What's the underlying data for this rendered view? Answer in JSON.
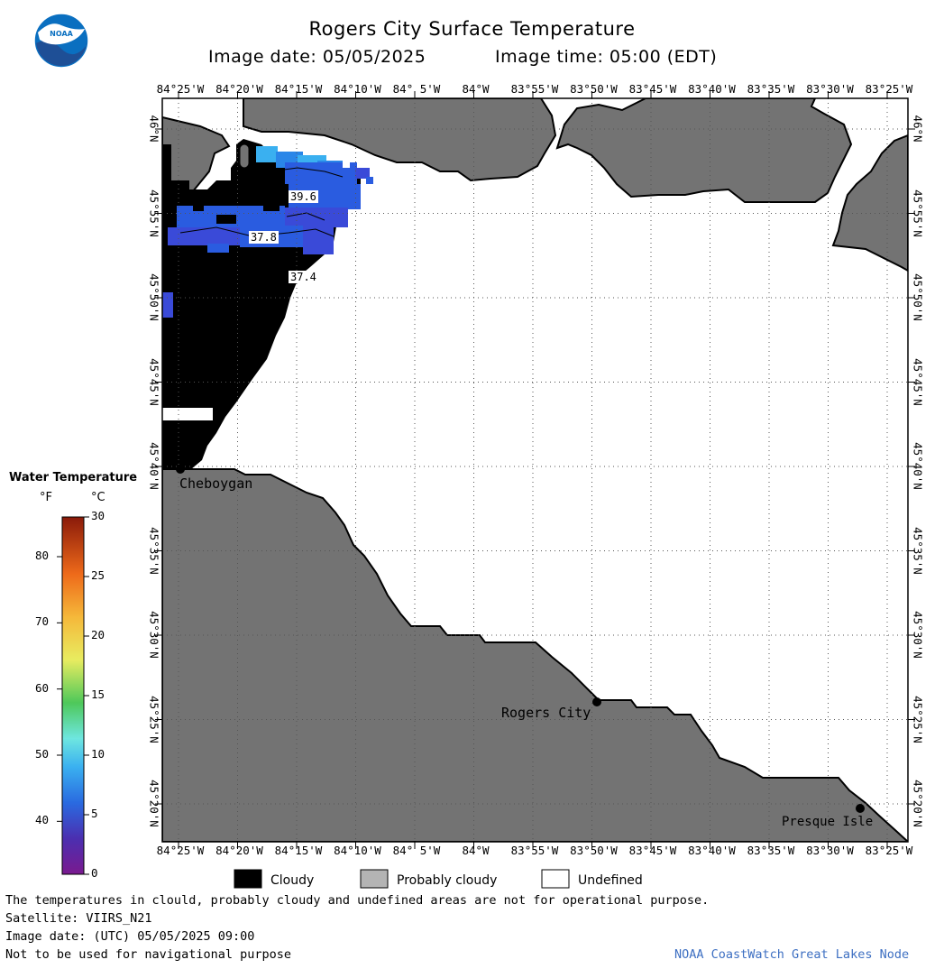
{
  "header": {
    "title": "Rogers City Surface Temperature",
    "image_date_label": "Image date: 05/05/2025",
    "image_time_label": "Image time: 05:00 (EDT)"
  },
  "logo": {
    "text": "NOAA"
  },
  "map": {
    "lon_ticks": [
      "84°25'W",
      "84°20'W",
      "84°15'W",
      "84°10'W",
      "84° 5'W",
      "84°W",
      "83°55'W",
      "83°50'W",
      "83°45'W",
      "83°40'W",
      "83°35'W",
      "83°30'W",
      "83°25'W"
    ],
    "lat_ticks": [
      "46°N",
      "45°55'N",
      "45°50'N",
      "45°45'N",
      "45°40'N",
      "45°35'N",
      "45°30'N",
      "45°25'N",
      "45°20'N"
    ],
    "places": [
      {
        "name": "Cheboygan",
        "id": "cheboygan"
      },
      {
        "name": "Rogers City",
        "id": "rogers-city"
      },
      {
        "name": "Presque Isle",
        "id": "presque-isle"
      }
    ],
    "contour_labels": [
      "39.6",
      "37.8",
      "37.4"
    ],
    "colors": {
      "land": "#737373",
      "cloud": "#000000",
      "undefined": "#ffffff",
      "grid": "#555555"
    }
  },
  "color_legend": {
    "title": "Water Temperature",
    "unit_f": "°F",
    "unit_c": "°C",
    "f_ticks": [
      "40",
      "50",
      "60",
      "70",
      "80"
    ],
    "c_ticks": [
      "0",
      "5",
      "10",
      "15",
      "20",
      "25",
      "30"
    ]
  },
  "category_legend": [
    {
      "label": "Cloudy",
      "color": "#000000"
    },
    {
      "label": "Probably cloudy",
      "color": "#b4b4b4"
    },
    {
      "label": "Undefined",
      "color": "#ffffff"
    }
  ],
  "footer": {
    "disclaimer": "The temperatures in clould, probably cloudy and undefined areas are not for operational purpose.",
    "satellite": "Satellite: VIIRS_N21",
    "utc_date": "Image date: (UTC) 05/05/2025  09:00",
    "nav_note": "Not to be used for navigational purpose",
    "credit": "NOAA CoastWatch Great Lakes Node"
  }
}
